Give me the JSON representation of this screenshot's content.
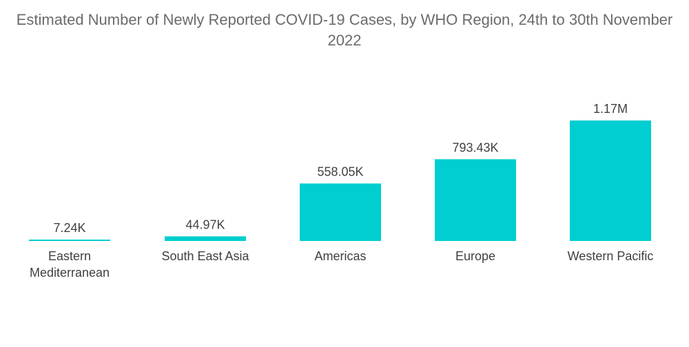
{
  "chart_data": {
    "type": "bar",
    "title": "Estimated Number of Newly Reported COVID-19 Cases, by WHO Region, 24th to 30th November 2022",
    "categories": [
      "Eastern Mediterranean",
      "South East Asia",
      "Americas",
      "Europe",
      "Western Pacific"
    ],
    "values": [
      7240,
      44970,
      558050,
      793430,
      1170000
    ],
    "data_labels": [
      "7.24K",
      "44.97K",
      "558.05K",
      "793.43K",
      "1.17M"
    ],
    "ylim": [
      0,
      1170000
    ],
    "grid": false,
    "legend": "none",
    "colors": {
      "bar": "#00ced1",
      "text": "#404040",
      "title": "#6b6b6b"
    }
  }
}
